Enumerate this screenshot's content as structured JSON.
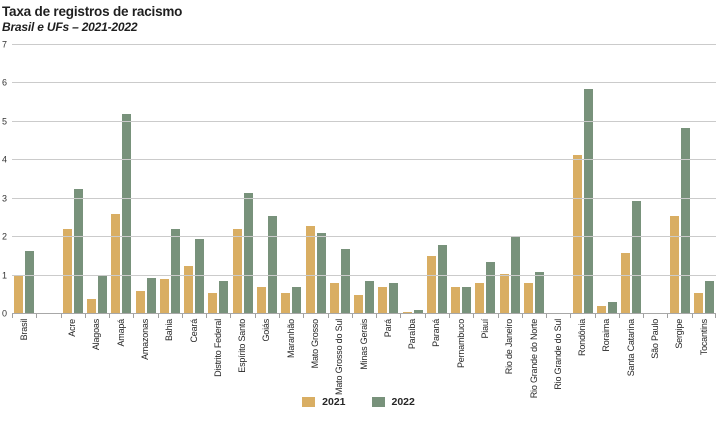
{
  "header": {
    "title": "Taxa de registros de racismo",
    "subtitle": "Brasil e UFs – 2021-2022"
  },
  "chart_data": {
    "type": "bar",
    "title": "Taxa de registros de racismo",
    "subtitle": "Brasil e UFs – 2021-2022",
    "categories": [
      "Brasil",
      "Acre",
      "Alagoas",
      "Amapá",
      "Amazonas",
      "Bahia",
      "Ceará",
      "Distrito Federal",
      "Espírito Santo",
      "Goiás",
      "Maranhão",
      "Mato Grosso",
      "Mato Grosso do Sul",
      "Minas Gerais",
      "Pará",
      "Paraíba",
      "Paraná",
      "Pernambuco",
      "Piauí",
      "Rio de Janeiro",
      "Rio Grande do Norte",
      "Rio Grande do Sul",
      "Rondônia",
      "Roraima",
      "Santa Catarina",
      "São Paulo",
      "Sergipe",
      "Tocantins"
    ],
    "series": [
      {
        "name": "2021",
        "color": "#D9AE63",
        "values": [
          1.0,
          2.2,
          0.4,
          2.6,
          0.6,
          0.9,
          1.25,
          0.55,
          2.2,
          0.7,
          0.55,
          2.3,
          0.8,
          0.5,
          0.7,
          0.05,
          1.5,
          0.7,
          0.8,
          1.05,
          0.8,
          null,
          4.15,
          0.2,
          1.6,
          null,
          2.55,
          0.55
        ]
      },
      {
        "name": "2022",
        "color": "#78927B",
        "values": [
          1.65,
          3.25,
          1.0,
          5.2,
          0.95,
          2.2,
          1.95,
          0.85,
          3.15,
          2.55,
          0.7,
          2.1,
          1.7,
          0.85,
          0.8,
          0.1,
          1.8,
          0.7,
          1.35,
          2.0,
          1.1,
          null,
          5.85,
          0.3,
          2.95,
          null,
          4.85,
          0.85
        ]
      }
    ],
    "ylim": [
      0,
      7
    ],
    "yticks": [
      0,
      1,
      2,
      3,
      4,
      5,
      6,
      7
    ],
    "xlabel": "",
    "ylabel": "",
    "grid": "horizontal",
    "legend_position": "bottom-center",
    "notes": {
      "separator_gap_after": "Brasil",
      "no_data_categories": [
        "Rio Grande do Sul",
        "São Paulo"
      ]
    }
  }
}
